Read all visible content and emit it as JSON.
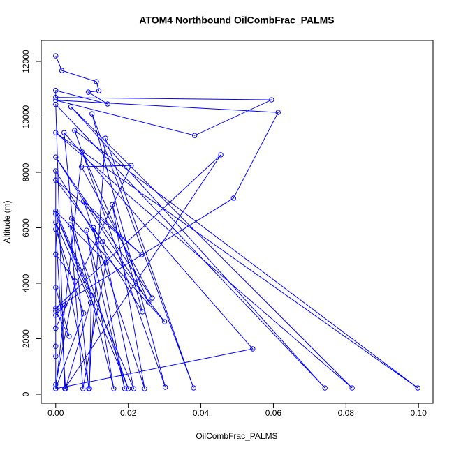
{
  "chart_data": {
    "type": "line",
    "markers": true,
    "title": "ATOM4 Northbound OilCombFrac_PALMS",
    "x_label": "OilCombFrac_PALMS",
    "y_label": "Altitude (m)",
    "color": "#0000ff",
    "xlim": [
      -0.004,
      0.104
    ],
    "ylim": [
      -327,
      12755
    ],
    "xticks": [
      {
        "value": 0,
        "label": "0.00"
      },
      {
        "value": 0.02,
        "label": "0.02"
      },
      {
        "value": 0.04,
        "label": "0.04"
      },
      {
        "value": 0.06,
        "label": "0.06"
      },
      {
        "value": 0.08,
        "label": "0.08"
      },
      {
        "value": 0.1,
        "label": "0.10"
      }
    ],
    "yticks": [
      0,
      2000,
      4000,
      6000,
      8000,
      10000,
      12000
    ],
    "x": [
      0,
      0.0017,
      0.0112,
      0.0119,
      0.009,
      0.0143,
      0,
      0,
      0.0595,
      0.0383,
      0,
      0.0613,
      0.049,
      0,
      0.0455,
      0.0025,
      0,
      0.0742,
      0.0042,
      0.0817,
      0,
      0.0998,
      0.0052,
      0.0302,
      0.01,
      0.038,
      0.0137,
      0.0091,
      0.0023,
      0.0543,
      0,
      0.0073,
      0.0256,
      0,
      0.0266,
      0.0071,
      0.0208,
      0,
      0,
      0.0239,
      0.0156,
      0.0245,
      0.0077,
      0.0237,
      0,
      0.03,
      0.0044,
      0.016,
      0.0085,
      0.019,
      0.0104,
      0.0129,
      0.0215,
      0,
      0.0139,
      0.0075,
      0.004,
      0.02,
      0,
      0.0098,
      0.0093,
      0,
      0.0096,
      0.0027,
      0,
      0.0077,
      0,
      0,
      0.0054,
      0,
      0,
      0.0037,
      0,
      0.0025,
      0,
      0,
      0,
      0
    ],
    "values": [
      12200,
      11670,
      11270,
      10940,
      10890,
      10465,
      10950,
      10700,
      10615,
      9330,
      10600,
      10160,
      7070,
      3100,
      8630,
      200,
      10450,
      225,
      10365,
      225,
      9430,
      225,
      9510,
      250,
      10110,
      225,
      9230,
      200,
      9430,
      1635,
      200,
      8730,
      3320,
      8550,
      3470,
      8200,
      8250,
      2380,
      8050,
      2970,
      6840,
      200,
      6970,
      5030,
      7720,
      2615,
      6340,
      200,
      5910,
      200,
      6010,
      5510,
      200,
      6600,
      4755,
      200,
      6110,
      200,
      6500,
      3570,
      200,
      6200,
      3300,
      200,
      5950,
      2920,
      200,
      5050,
      4075,
      350,
      3850,
      2090,
      3000,
      3220,
      2850,
      1730,
      1370,
      200
    ]
  }
}
